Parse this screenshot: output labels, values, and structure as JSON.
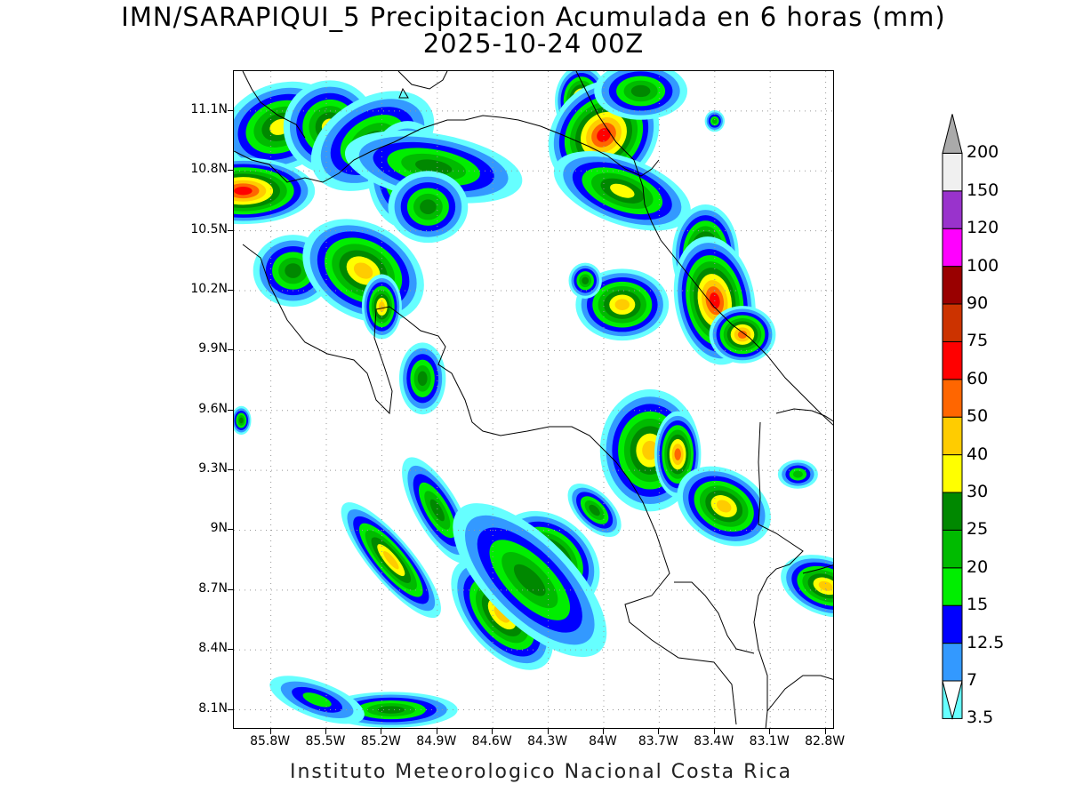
{
  "title": "IMN/SARAPIQUI_5 Precipitacion Acumulada en 6 horas (mm)",
  "subtitle": "2025-10-24 00Z",
  "footer": "Instituto Meteorologico Nacional Costa Rica",
  "map": {
    "lat_labels": [
      "11.1N",
      "10.8N",
      "10.5N",
      "10.2N",
      "9.9N",
      "9.6N",
      "9.3N",
      "9N",
      "8.7N",
      "8.4N",
      "8.1N"
    ],
    "lon_labels": [
      "85.8W",
      "85.5W",
      "85.2W",
      "84.9W",
      "84.6W",
      "84.3W",
      "84W",
      "83.7W",
      "83.4W",
      "83.1W",
      "82.8W"
    ],
    "lat_values": [
      11.1,
      10.8,
      10.5,
      10.2,
      9.9,
      9.6,
      9.3,
      9.0,
      8.7,
      8.4,
      8.1
    ],
    "lon_values": [
      -85.8,
      -85.5,
      -85.2,
      -84.9,
      -84.6,
      -84.3,
      -84.0,
      -83.7,
      -83.4,
      -83.1,
      -82.8
    ],
    "lat_range": [
      8.0,
      11.3
    ],
    "lon_range": [
      -86.0,
      -82.75
    ],
    "grid": "dotted",
    "coastline_color": "#000000"
  },
  "legend": {
    "levels": [
      "3.5",
      "7",
      "12.5",
      "15",
      "20",
      "25",
      "30",
      "40",
      "50",
      "60",
      "75",
      "90",
      "100",
      "120",
      "150",
      "200"
    ],
    "colors": [
      "#66ffff",
      "#3399ff",
      "#0000ff",
      "#00ee00",
      "#00bb00",
      "#008800",
      "#ffff00",
      "#ffcc00",
      "#ff6600",
      "#ff0000",
      "#cc3300",
      "#990000",
      "#ff00ff",
      "#9933cc",
      "#f0f0f0",
      "#aaaaaa"
    ],
    "placement": "right"
  },
  "rain_cells": [
    {
      "lon": -85.75,
      "lat": 11.02,
      "rx": 0.18,
      "ry": 0.12,
      "rot": 20,
      "max": 30
    },
    {
      "lon": -85.48,
      "lat": 11.02,
      "rx": 0.14,
      "ry": 0.13,
      "rot": 0,
      "max": 30
    },
    {
      "lon": -85.25,
      "lat": 10.95,
      "rx": 0.2,
      "ry": 0.12,
      "rot": 30,
      "max": 25
    },
    {
      "lon": -85.06,
      "lat": 10.78,
      "rx": 0.12,
      "ry": 0.15,
      "rot": 0,
      "max": 30
    },
    {
      "lon": -84.92,
      "lat": 10.82,
      "rx": 0.1,
      "ry": 0.25,
      "rot": 80,
      "max": 25
    },
    {
      "lon": -84.95,
      "lat": 10.62,
      "rx": 0.12,
      "ry": 0.1,
      "rot": 0,
      "max": 25
    },
    {
      "lon": -85.95,
      "lat": 10.7,
      "rx": 0.1,
      "ry": 0.2,
      "rot": 90,
      "max": 60
    },
    {
      "lon": -85.68,
      "lat": 10.3,
      "rx": 0.12,
      "ry": 0.1,
      "rot": 0,
      "max": 25
    },
    {
      "lon": -85.3,
      "lat": 10.3,
      "rx": 0.14,
      "ry": 0.18,
      "rot": 60,
      "max": 40
    },
    {
      "lon": -85.2,
      "lat": 10.12,
      "rx": 0.06,
      "ry": 0.09,
      "rot": 0,
      "max": 40
    },
    {
      "lon": -84.98,
      "lat": 9.76,
      "rx": 0.07,
      "ry": 0.1,
      "rot": 0,
      "max": 25
    },
    {
      "lon": -84.12,
      "lat": 11.15,
      "rx": 0.08,
      "ry": 0.1,
      "rot": 0,
      "max": 50
    },
    {
      "lon": -84.0,
      "lat": 10.98,
      "rx": 0.18,
      "ry": 0.14,
      "rot": 45,
      "max": 60
    },
    {
      "lon": -83.8,
      "lat": 11.2,
      "rx": 0.14,
      "ry": 0.08,
      "rot": 0,
      "max": 25
    },
    {
      "lon": -83.9,
      "lat": 10.7,
      "rx": 0.1,
      "ry": 0.2,
      "rot": 70,
      "max": 30
    },
    {
      "lon": -83.45,
      "lat": 10.38,
      "rx": 0.1,
      "ry": 0.14,
      "rot": 0,
      "max": 50
    },
    {
      "lon": -83.4,
      "lat": 10.15,
      "rx": 0.12,
      "ry": 0.18,
      "rot": 10,
      "max": 60
    },
    {
      "lon": -83.25,
      "lat": 9.98,
      "rx": 0.1,
      "ry": 0.08,
      "rot": 0,
      "max": 50
    },
    {
      "lon": -83.9,
      "lat": 10.13,
      "rx": 0.14,
      "ry": 0.1,
      "rot": 0,
      "max": 40
    },
    {
      "lon": -84.1,
      "lat": 10.25,
      "rx": 0.05,
      "ry": 0.05,
      "rot": 0,
      "max": 25
    },
    {
      "lon": -83.75,
      "lat": 9.4,
      "rx": 0.15,
      "ry": 0.17,
      "rot": 0,
      "max": 40
    },
    {
      "lon": -83.6,
      "lat": 9.38,
      "rx": 0.07,
      "ry": 0.12,
      "rot": 0,
      "max": 50
    },
    {
      "lon": -83.35,
      "lat": 9.12,
      "rx": 0.15,
      "ry": 0.1,
      "rot": -30,
      "max": 40
    },
    {
      "lon": -82.8,
      "lat": 8.72,
      "rx": 0.14,
      "ry": 0.08,
      "rot": -20,
      "max": 40
    },
    {
      "lon": -85.15,
      "lat": 8.85,
      "rx": 0.22,
      "ry": 0.06,
      "rot": -50,
      "max": 40
    },
    {
      "lon": -84.9,
      "lat": 9.1,
      "rx": 0.18,
      "ry": 0.06,
      "rot": -60,
      "max": 25
    },
    {
      "lon": -84.3,
      "lat": 8.85,
      "rx": 0.17,
      "ry": 0.12,
      "rot": -40,
      "max": 50
    },
    {
      "lon": -84.55,
      "lat": 8.58,
      "rx": 0.2,
      "ry": 0.1,
      "rot": -50,
      "max": 40
    },
    {
      "lon": -84.4,
      "lat": 8.75,
      "rx": 0.3,
      "ry": 0.12,
      "rot": -45,
      "max": 25
    },
    {
      "lon": -84.05,
      "lat": 9.1,
      "rx": 0.1,
      "ry": 0.05,
      "rot": -45,
      "max": 25
    },
    {
      "lon": -85.15,
      "lat": 8.1,
      "rx": 0.2,
      "ry": 0.05,
      "rot": 0,
      "max": 25
    },
    {
      "lon": -85.55,
      "lat": 8.15,
      "rx": 0.15,
      "ry": 0.05,
      "rot": -20,
      "max": 15
    },
    {
      "lon": -85.96,
      "lat": 9.55,
      "rx": 0.03,
      "ry": 0.04,
      "rot": 0,
      "max": 25
    },
    {
      "lon": -82.95,
      "lat": 9.28,
      "rx": 0.06,
      "ry": 0.04,
      "rot": 0,
      "max": 20
    },
    {
      "lon": -83.4,
      "lat": 11.05,
      "rx": 0.03,
      "ry": 0.03,
      "rot": 0,
      "max": 20
    }
  ]
}
